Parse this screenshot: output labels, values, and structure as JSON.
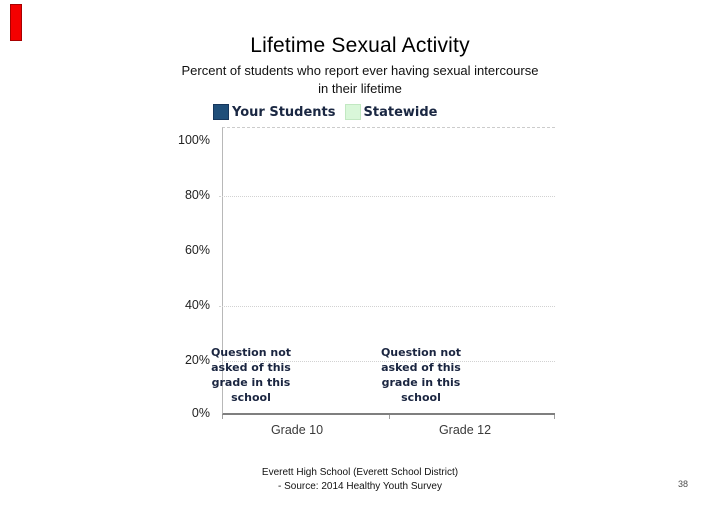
{
  "slide": {
    "title": "Lifetime Sexual Activity",
    "subtitle_line1": "Percent of students who report ever having sexual intercourse",
    "subtitle_line2": "in their lifetime",
    "footer_line1": "Everett High School (Everett School District)",
    "footer_line2": "- Source: 2014 Healthy Youth Survey",
    "page_number": "38"
  },
  "legend": {
    "items": [
      {
        "label": "Your Students",
        "color": "#1f4e79"
      },
      {
        "label": "Statewide",
        "color": "#d9f7d9"
      }
    ]
  },
  "axes": {
    "y_ticks": [
      "100%",
      "80%",
      "60%",
      "40%",
      "20%",
      "0%"
    ],
    "x_labels": [
      "Grade 10",
      "Grade 12"
    ]
  },
  "annotations": {
    "grade10": [
      "Question not",
      "asked of this",
      "grade in this",
      "school"
    ],
    "grade12": [
      "Question not",
      "asked of this",
      "grade in this",
      "school"
    ]
  },
  "colors": {
    "your_students_fill": "#1f4e79",
    "your_students_border": "#16365c",
    "statewide_fill": "#d9f7d9",
    "statewide_border": "#c2e8c2",
    "red_ribbon": "#f40000",
    "axis_line": "#7f7f7f",
    "gridline": "#d2d2d2"
  },
  "chart_data": {
    "type": "bar",
    "title": "Lifetime Sexual Activity",
    "subtitle": "Percent of students who report ever having sexual intercourse in their lifetime",
    "categories": [
      "Grade 10",
      "Grade 12"
    ],
    "series": [
      {
        "name": "Your Students",
        "color": "#1f4e79",
        "values": [
          null,
          null
        ]
      },
      {
        "name": "Statewide",
        "color": "#d9f7d9",
        "values": [
          null,
          null
        ]
      }
    ],
    "ylim": [
      0,
      100
    ],
    "y_tick_labels": [
      "0%",
      "20%",
      "40%",
      "60%",
      "80%",
      "100%"
    ],
    "grid": "horizontal dotted at 20/40/80",
    "legend_position": "top",
    "annotations": [
      {
        "category": "Grade 10",
        "text": "Question not asked of this grade in this school"
      },
      {
        "category": "Grade 12",
        "text": "Question not asked of this grade in this school"
      }
    ]
  }
}
